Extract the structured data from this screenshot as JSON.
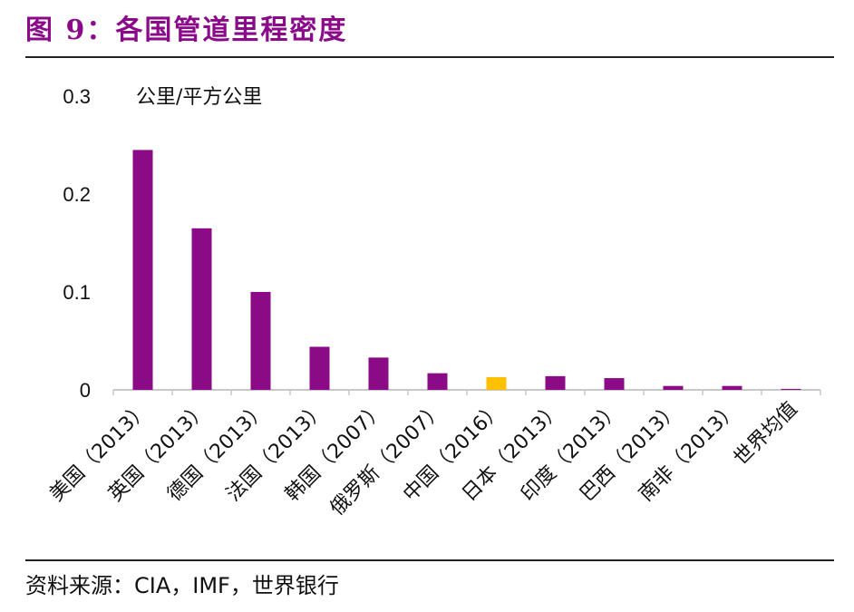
{
  "title": "图 9：各国管道里程密度",
  "source": "资料来源：CIA，IMF，世界银行",
  "chart_data": {
    "type": "bar",
    "title": "图 9：各国管道里程密度",
    "ylabel": "公里/平方公里",
    "xlabel": "",
    "ylim": [
      0,
      0.3
    ],
    "yticks": [
      "0",
      "0.1",
      "0.2",
      "0.3"
    ],
    "grid": false,
    "categories": [
      "美国（2013）",
      "英国（2013）",
      "德国（2013）",
      "法国（2013）",
      "韩国（2007）",
      "俄罗斯（2007）",
      "中国（2016）",
      "日本（2013）",
      "印度（2013）",
      "巴西（2013）",
      "南非（2013）",
      "世界均值"
    ],
    "values": [
      0.245,
      0.165,
      0.1,
      0.044,
      0.033,
      0.017,
      0.013,
      0.014,
      0.012,
      0.004,
      0.004,
      0.001
    ],
    "colors": {
      "default": "#8b0a86",
      "highlight": "#ffc000"
    },
    "highlight_category": "中国（2016）"
  }
}
